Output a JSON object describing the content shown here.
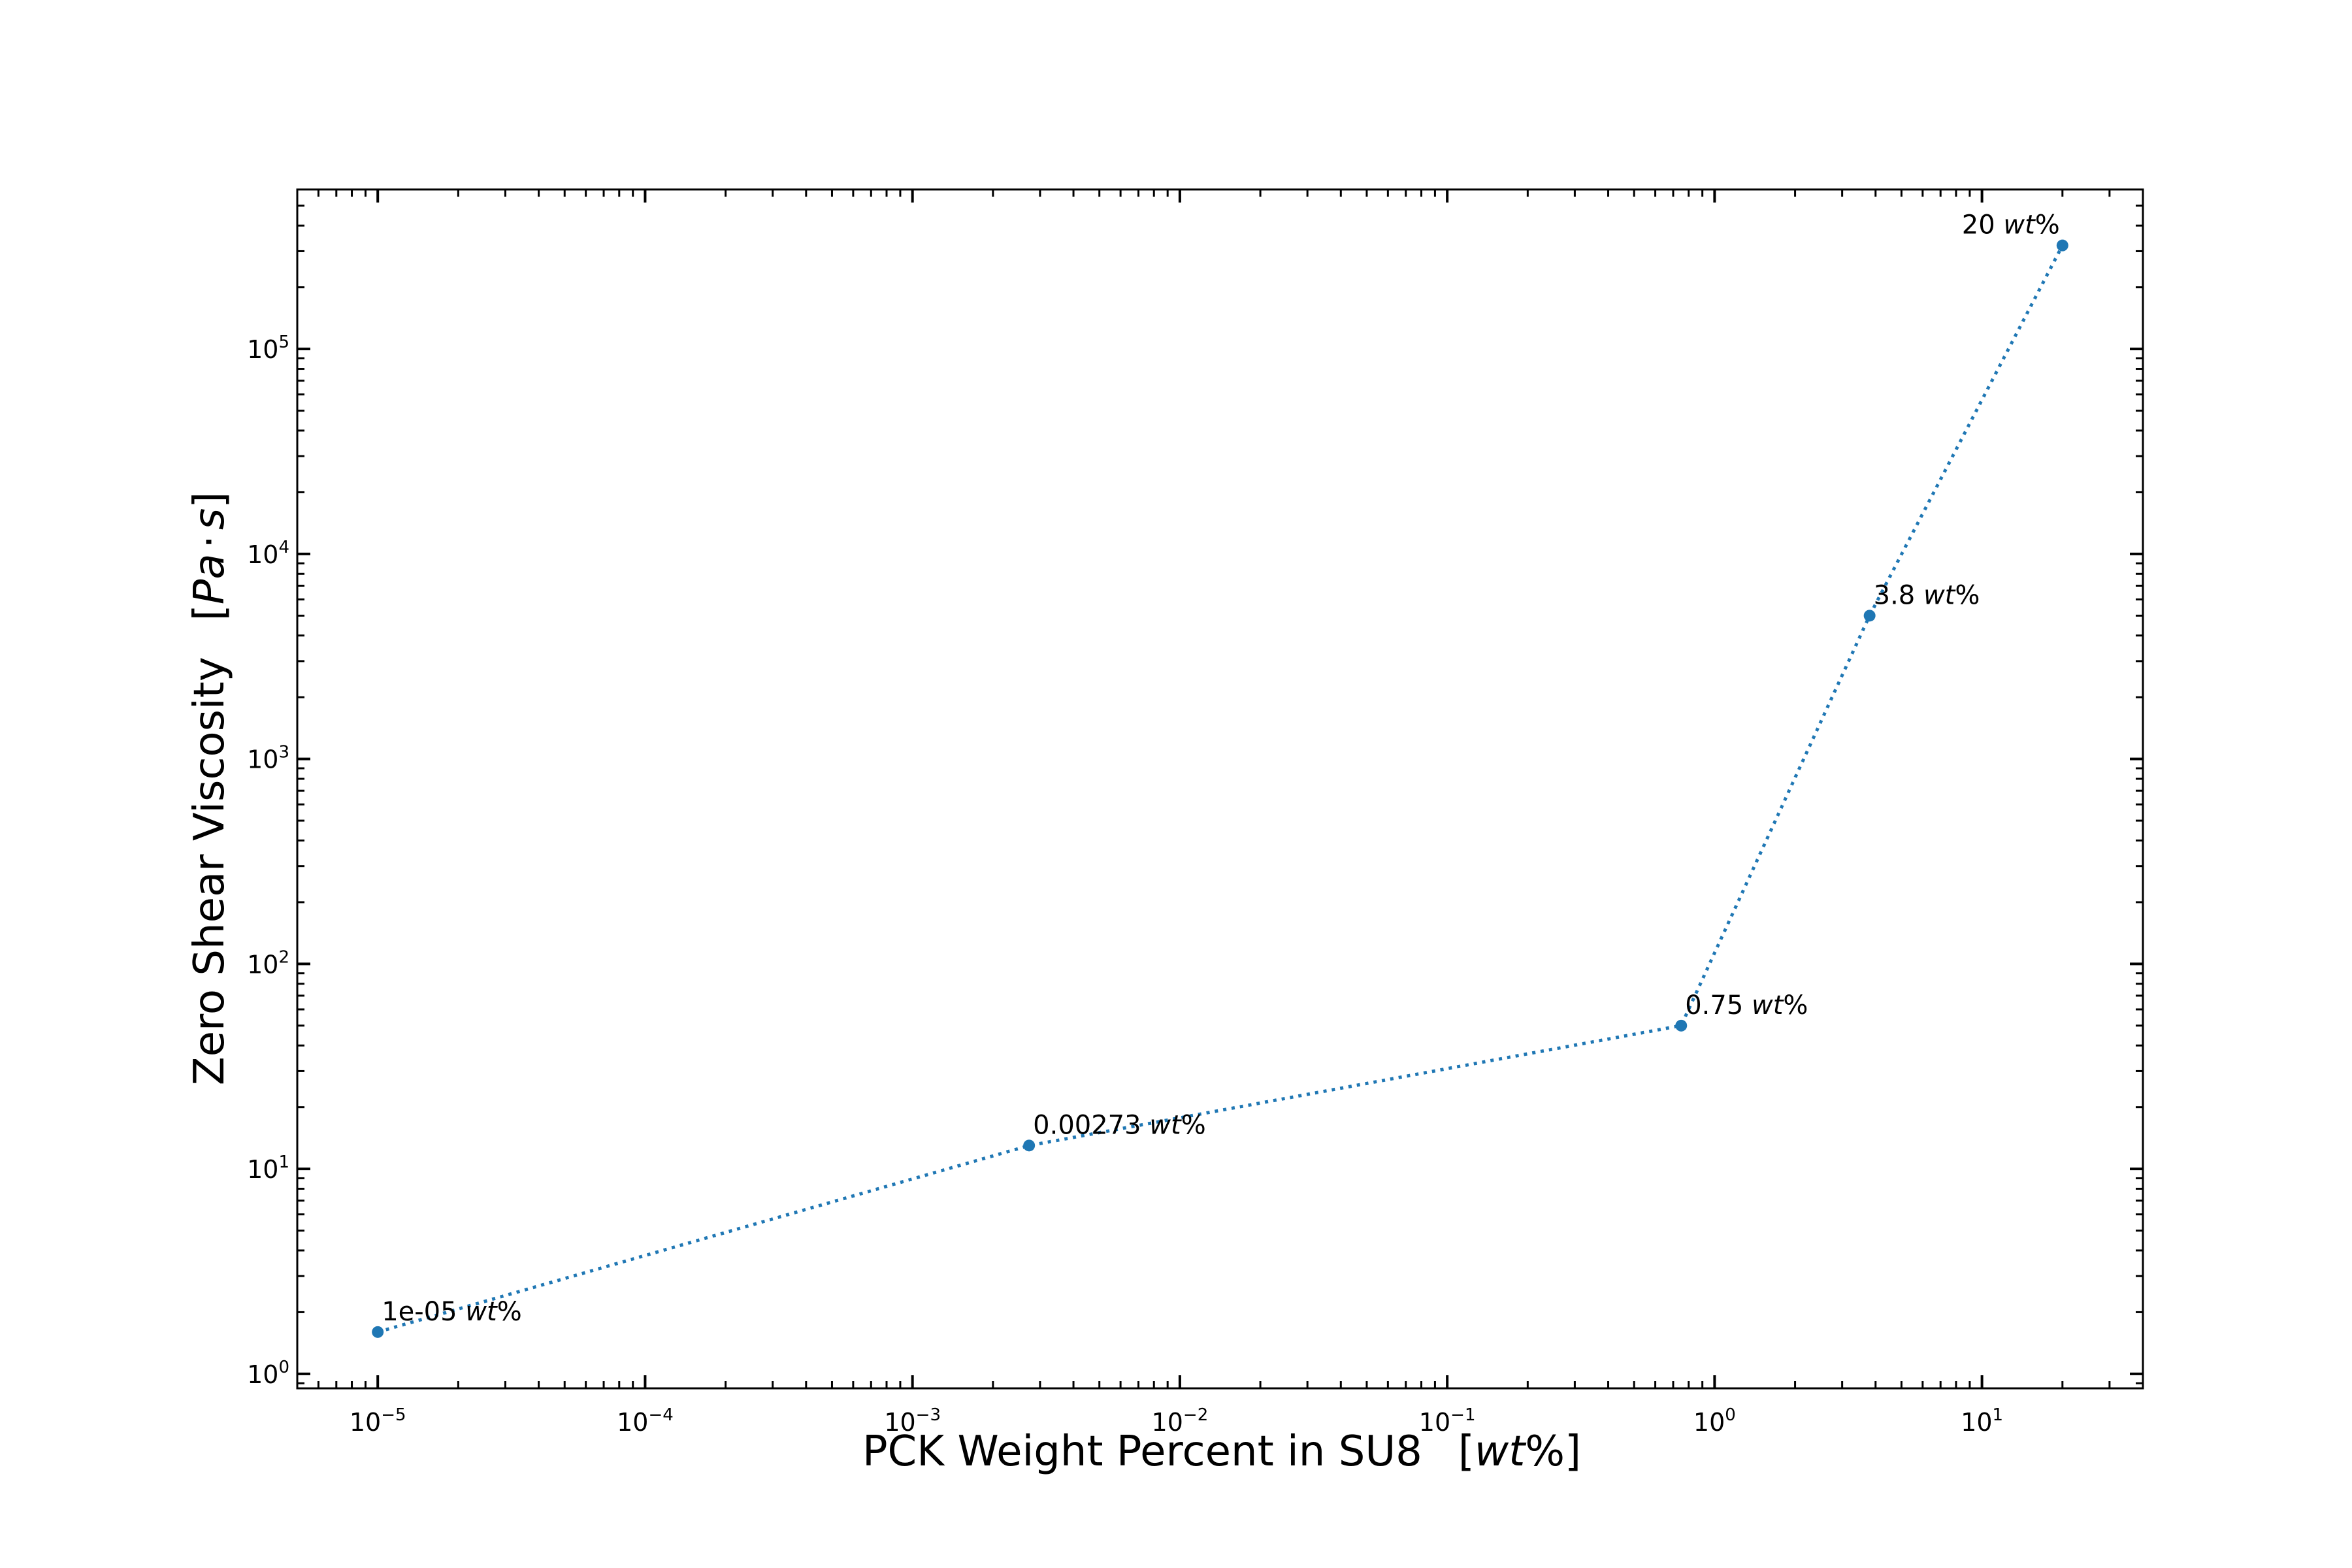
{
  "chart_data": {
    "type": "line",
    "x_scale": "log",
    "y_scale": "log",
    "xlim": [
      5e-06,
      40
    ],
    "ylim": [
      0.85,
      600000
    ],
    "grid": false,
    "line_style": "dotted",
    "marker": "circle",
    "series_color": "#1f77b4",
    "x": [
      1e-05,
      0.00273,
      0.75,
      3.8,
      20
    ],
    "y": [
      1.6,
      13,
      50,
      5000,
      320000
    ],
    "point_labels": [
      {
        "num": "1e-05",
        "unit": "wt",
        "pct": "%"
      },
      {
        "num": "0.00273",
        "unit": "wt",
        "pct": "%"
      },
      {
        "num": "0.75",
        "unit": "wt",
        "pct": "%"
      },
      {
        "num": "3.8",
        "unit": "wt",
        "pct": "%"
      },
      {
        "num": "20",
        "unit": "wt",
        "pct": "%"
      }
    ],
    "x_ticks": [
      {
        "base": "10",
        "exp": "−5"
      },
      {
        "base": "10",
        "exp": "−4"
      },
      {
        "base": "10",
        "exp": "−3"
      },
      {
        "base": "10",
        "exp": "−2"
      },
      {
        "base": "10",
        "exp": "−1"
      },
      {
        "base": "10",
        "exp": "0"
      },
      {
        "base": "10",
        "exp": "1"
      }
    ],
    "y_ticks": [
      {
        "base": "10",
        "exp": "0"
      },
      {
        "base": "10",
        "exp": "1"
      },
      {
        "base": "10",
        "exp": "2"
      },
      {
        "base": "10",
        "exp": "3"
      },
      {
        "base": "10",
        "exp": "4"
      },
      {
        "base": "10",
        "exp": "5"
      }
    ],
    "xlabel": {
      "text": "PCK Weight Percent in SU8",
      "open": "[",
      "unit": "wt",
      "pct": "%",
      "close": "]"
    },
    "ylabel": {
      "text": "Zero Shear Viscosity",
      "open": "[",
      "u1": "Pa",
      "dot": "·",
      "u2": "s",
      "close": "]"
    }
  }
}
